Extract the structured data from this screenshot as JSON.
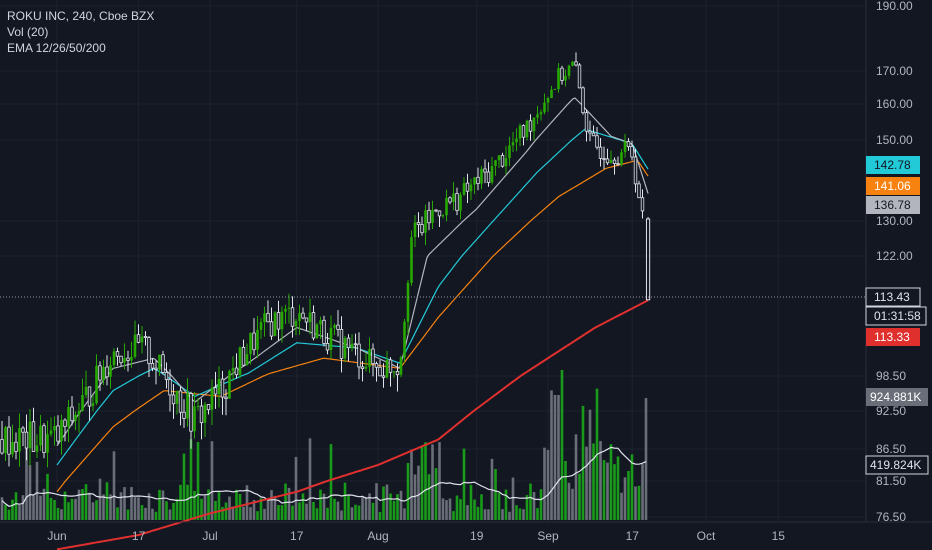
{
  "legend": {
    "title": "ROKU INC, 240, Cboe BZX",
    "vol": "Vol (20)",
    "ema": "EMA 12/26/50/200"
  },
  "colors": {
    "background": "#131722",
    "up": "#26a800",
    "down": "#e0e3eb",
    "volume_up": "#1a9a1a",
    "volume_down": "#6a6e78",
    "ema12": "#b2b5be",
    "ema26": "#22c9d6",
    "ema50": "#f7820f",
    "ema200": "#e0302e",
    "volume_ma": "#e0e3eb"
  },
  "chart_data": {
    "type": "candlestick",
    "symbol": "ROKU INC",
    "interval": "240",
    "exchange": "Cboe BZX",
    "y_axis_ticks": [
      190.0,
      170.0,
      160.0,
      150.0,
      130.0,
      122.0,
      98.5,
      92.5,
      86.5,
      81.5,
      76.5
    ],
    "y_axis_labels": [
      "190.00",
      "170.00",
      "160.00",
      "150.00",
      "130.00",
      "122.00",
      "98.50",
      "92.50",
      "86.50",
      "81.50",
      "76.50"
    ],
    "x_axis_labels": [
      "Jun",
      "17",
      "Jul",
      "17",
      "Aug",
      "19",
      "Sep",
      "17",
      "Oct",
      "15"
    ],
    "price_badges": [
      {
        "value": "142.78",
        "color": "#22c9d6",
        "text_color": "#131722"
      },
      {
        "value": "141.06",
        "color": "#f7820f",
        "text_color": "#ffffff"
      },
      {
        "value": "136.78",
        "color": "#b2b5be",
        "text_color": "#131722"
      },
      {
        "value": "113.43",
        "color": "#131722",
        "text_color": "#e0e3eb"
      },
      {
        "value": "01:31:58",
        "color": "#131722",
        "text_color": "#e0e3eb"
      },
      {
        "value": "113.33",
        "color": "#e0302e",
        "text_color": "#ffffff"
      }
    ],
    "volume_badges": [
      {
        "value": "924.881K",
        "color": "#6a6e78",
        "text_color": "#ffffff"
      },
      {
        "value": "419.824K",
        "color": "#131722",
        "text_color": "#e0e3eb"
      }
    ],
    "last_price": 113.43,
    "price_path": [
      [
        "Jun",
        88
      ],
      [
        "Jun 7",
        95
      ],
      [
        "Jun 12",
        103
      ],
      [
        "Jun 18",
        104
      ],
      [
        "Jun 24",
        96
      ],
      [
        "Jun 28",
        91
      ],
      [
        "Jul 3",
        96
      ],
      [
        "Jul 8",
        104
      ],
      [
        "Jul 12",
        109
      ],
      [
        "Jul 17",
        111
      ],
      [
        "Jul 22",
        107
      ],
      [
        "Jul 28",
        103
      ],
      [
        "Aug 1",
        100
      ],
      [
        "Aug 5",
        101
      ],
      [
        "Aug 7",
        126
      ],
      [
        "Aug 12",
        133
      ],
      [
        "Aug 16",
        136
      ],
      [
        "Aug 22",
        143
      ],
      [
        "Aug 28",
        153
      ],
      [
        "Sep 3",
        168
      ],
      [
        "Sep 6",
        172
      ],
      [
        "Sep 9",
        149
      ],
      [
        "Sep 13",
        147
      ],
      [
        "Sep 17",
        147
      ],
      [
        "Sep 19",
        130
      ],
      [
        "Sep 20",
        113.43
      ]
    ],
    "ema12_path": [
      [
        "Jun",
        87
      ],
      [
        "Jun 12",
        100
      ],
      [
        "Jun 20",
        102
      ],
      [
        "Jun 28",
        94
      ],
      [
        "Jul 8",
        101
      ],
      [
        "Jul 17",
        108
      ],
      [
        "Jul 28",
        104
      ],
      [
        "Aug 5",
        100
      ],
      [
        "Aug 10",
        122
      ],
      [
        "Aug 19",
        133
      ],
      [
        "Aug 28",
        147
      ],
      [
        "Sep 6",
        162
      ],
      [
        "Sep 13",
        151
      ],
      [
        "Sep 17",
        149
      ],
      [
        "Sep 20",
        136.78
      ]
    ],
    "ema26_path": [
      [
        "Jun",
        84
      ],
      [
        "Jun 12",
        96
      ],
      [
        "Jun 20",
        100
      ],
      [
        "Jun 28",
        95
      ],
      [
        "Jul 8",
        99
      ],
      [
        "Jul 17",
        105
      ],
      [
        "Jul 28",
        104
      ],
      [
        "Aug 5",
        101
      ],
      [
        "Aug 12",
        116
      ],
      [
        "Aug 22",
        130
      ],
      [
        "Aug 30",
        142
      ],
      [
        "Sep 8",
        153
      ],
      [
        "Sep 17",
        149
      ],
      [
        "Sep 20",
        142.78
      ]
    ],
    "ema50_path": [
      [
        "Jun",
        80
      ],
      [
        "Jun 12",
        90
      ],
      [
        "Jun 22",
        96
      ],
      [
        "Jul 3",
        95
      ],
      [
        "Jul 12",
        99
      ],
      [
        "Jul 22",
        102
      ],
      [
        "Aug 5",
        100
      ],
      [
        "Aug 12",
        110
      ],
      [
        "Aug 22",
        122
      ],
      [
        "Sep 3",
        136
      ],
      [
        "Sep 12",
        143
      ],
      [
        "Sep 18",
        145
      ],
      [
        "Sep 20",
        141.06
      ]
    ],
    "ema200_path": [
      [
        "Jun",
        72
      ],
      [
        "Jun 17",
        74
      ],
      [
        "Jul",
        77
      ],
      [
        "Jul 17",
        80
      ],
      [
        "Aug",
        84
      ],
      [
        "Aug 12",
        88
      ],
      [
        "Aug 22",
        95
      ],
      [
        "Sep",
        102
      ],
      [
        "Sep 10",
        108
      ],
      [
        "Sep 20",
        113.33
      ]
    ],
    "volume_last": "924.881K",
    "volume_ma_last": "419.824K"
  }
}
